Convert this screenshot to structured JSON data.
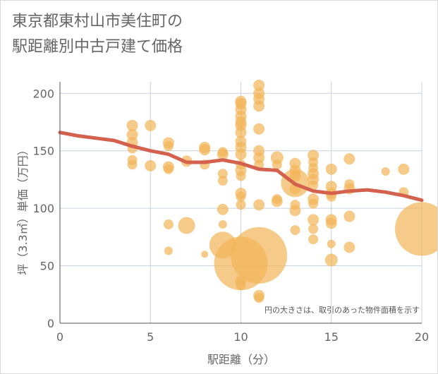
{
  "chart_data": {
    "type": "scatter",
    "title": [
      "東京都東村山市美住町の",
      "駅距離別中古戸建て価格"
    ],
    "xlabel": "駅距離（分）",
    "ylabel": "坪（3.3㎡）単価（万円）",
    "annotation": "円の大きさは、取引のあった物件面積を示す",
    "xlim": [
      0,
      20
    ],
    "ylim": [
      0,
      210
    ],
    "x_ticks": [
      0,
      5,
      10,
      15,
      20
    ],
    "y_ticks": [
      0,
      50,
      100,
      150,
      200
    ],
    "grid": true,
    "colors": {
      "bubble": "#f2b55a",
      "line": "#d4614e",
      "grid": "#c8d3dc",
      "text": "#666666"
    },
    "trend_line": {
      "x": [
        0,
        1,
        2,
        3,
        4,
        5,
        6,
        7,
        8,
        9,
        10,
        11,
        12,
        13,
        14,
        15,
        16,
        17,
        18,
        19,
        20
      ],
      "y": [
        166,
        163,
        161,
        159,
        154,
        150,
        147,
        140,
        140,
        142,
        139,
        134,
        133,
        121,
        115,
        113,
        115,
        116,
        114,
        111,
        107
      ]
    },
    "points": [
      {
        "x": 4,
        "y": 172,
        "size": 8
      },
      {
        "x": 4,
        "y": 164,
        "size": 8
      },
      {
        "x": 4,
        "y": 157,
        "size": 8
      },
      {
        "x": 4,
        "y": 152,
        "size": 7
      },
      {
        "x": 4,
        "y": 142,
        "size": 7
      },
      {
        "x": 4,
        "y": 138,
        "size": 7
      },
      {
        "x": 5,
        "y": 172,
        "size": 8
      },
      {
        "x": 5,
        "y": 137,
        "size": 8
      },
      {
        "x": 6,
        "y": 157,
        "size": 8
      },
      {
        "x": 6,
        "y": 154,
        "size": 7
      },
      {
        "x": 6,
        "y": 136,
        "size": 8
      },
      {
        "x": 6,
        "y": 134,
        "size": 7
      },
      {
        "x": 6,
        "y": 86,
        "size": 7
      },
      {
        "x": 6,
        "y": 63,
        "size": 6
      },
      {
        "x": 7,
        "y": 141,
        "size": 8
      },
      {
        "x": 7,
        "y": 85,
        "size": 12
      },
      {
        "x": 8,
        "y": 153,
        "size": 8
      },
      {
        "x": 8,
        "y": 151,
        "size": 8
      },
      {
        "x": 8,
        "y": 138,
        "size": 7
      },
      {
        "x": 8,
        "y": 60,
        "size": 5
      },
      {
        "x": 9,
        "y": 149,
        "size": 7
      },
      {
        "x": 9,
        "y": 147,
        "size": 8
      },
      {
        "x": 9,
        "y": 130,
        "size": 7
      },
      {
        "x": 9,
        "y": 124,
        "size": 7
      },
      {
        "x": 9,
        "y": 99,
        "size": 8
      },
      {
        "x": 9,
        "y": 86,
        "size": 6
      },
      {
        "x": 9,
        "y": 68,
        "size": 19
      },
      {
        "x": 10,
        "y": 193,
        "size": 8
      },
      {
        "x": 10,
        "y": 191,
        "size": 8
      },
      {
        "x": 10,
        "y": 186,
        "size": 8
      },
      {
        "x": 10,
        "y": 180,
        "size": 8
      },
      {
        "x": 10,
        "y": 175,
        "size": 8
      },
      {
        "x": 10,
        "y": 172,
        "size": 8
      },
      {
        "x": 10,
        "y": 166,
        "size": 8
      },
      {
        "x": 10,
        "y": 158,
        "size": 8
      },
      {
        "x": 10,
        "y": 153,
        "size": 8
      },
      {
        "x": 10,
        "y": 147,
        "size": 8
      },
      {
        "x": 10,
        "y": 138,
        "size": 7
      },
      {
        "x": 10,
        "y": 133,
        "size": 8
      },
      {
        "x": 10,
        "y": 128,
        "size": 7
      },
      {
        "x": 10,
        "y": 113,
        "size": 8
      },
      {
        "x": 10,
        "y": 110,
        "size": 7
      },
      {
        "x": 10,
        "y": 103,
        "size": 7
      },
      {
        "x": 10,
        "y": 52,
        "size": 38
      },
      {
        "x": 10,
        "y": 37,
        "size": 8
      },
      {
        "x": 10,
        "y": 33,
        "size": 7
      },
      {
        "x": 11,
        "y": 207,
        "size": 8
      },
      {
        "x": 11,
        "y": 200,
        "size": 8
      },
      {
        "x": 11,
        "y": 195,
        "size": 8
      },
      {
        "x": 11,
        "y": 189,
        "size": 8
      },
      {
        "x": 11,
        "y": 169,
        "size": 8
      },
      {
        "x": 11,
        "y": 150,
        "size": 8
      },
      {
        "x": 11,
        "y": 144,
        "size": 8
      },
      {
        "x": 11,
        "y": 138,
        "size": 7
      },
      {
        "x": 11,
        "y": 103,
        "size": 8
      },
      {
        "x": 11,
        "y": 59,
        "size": 40
      },
      {
        "x": 11,
        "y": 24,
        "size": 8
      },
      {
        "x": 11,
        "y": 22,
        "size": 7
      },
      {
        "x": 12,
        "y": 144,
        "size": 9
      },
      {
        "x": 12,
        "y": 138,
        "size": 7
      },
      {
        "x": 12,
        "y": 108,
        "size": 7
      },
      {
        "x": 12,
        "y": 106,
        "size": 8
      },
      {
        "x": 13,
        "y": 139,
        "size": 8
      },
      {
        "x": 13,
        "y": 133,
        "size": 8
      },
      {
        "x": 13,
        "y": 128,
        "size": 8
      },
      {
        "x": 13,
        "y": 122,
        "size": 20
      },
      {
        "x": 13,
        "y": 117,
        "size": 8
      },
      {
        "x": 13,
        "y": 103,
        "size": 7
      },
      {
        "x": 13,
        "y": 98,
        "size": 8
      },
      {
        "x": 13,
        "y": 81,
        "size": 7
      },
      {
        "x": 14,
        "y": 146,
        "size": 8
      },
      {
        "x": 14,
        "y": 140,
        "size": 7
      },
      {
        "x": 14,
        "y": 135,
        "size": 7
      },
      {
        "x": 14,
        "y": 130,
        "size": 8
      },
      {
        "x": 14,
        "y": 125,
        "size": 8
      },
      {
        "x": 14,
        "y": 120,
        "size": 7
      },
      {
        "x": 14,
        "y": 108,
        "size": 8
      },
      {
        "x": 14,
        "y": 104,
        "size": 7
      },
      {
        "x": 14,
        "y": 90,
        "size": 8
      },
      {
        "x": 14,
        "y": 82,
        "size": 7
      },
      {
        "x": 14,
        "y": 73,
        "size": 7
      },
      {
        "x": 15,
        "y": 134,
        "size": 8
      },
      {
        "x": 15,
        "y": 119,
        "size": 8
      },
      {
        "x": 15,
        "y": 113,
        "size": 8
      },
      {
        "x": 15,
        "y": 110,
        "size": 7
      },
      {
        "x": 15,
        "y": 90,
        "size": 8
      },
      {
        "x": 15,
        "y": 87,
        "size": 8
      },
      {
        "x": 15,
        "y": 69,
        "size": 6
      },
      {
        "x": 15,
        "y": 55,
        "size": 9
      },
      {
        "x": 16,
        "y": 143,
        "size": 8
      },
      {
        "x": 16,
        "y": 121,
        "size": 7
      },
      {
        "x": 16,
        "y": 117,
        "size": 8
      },
      {
        "x": 16,
        "y": 93,
        "size": 8
      },
      {
        "x": 16,
        "y": 66,
        "size": 8
      },
      {
        "x": 18,
        "y": 132,
        "size": 6
      },
      {
        "x": 19,
        "y": 134,
        "size": 8
      },
      {
        "x": 19,
        "y": 114,
        "size": 7
      },
      {
        "x": 20,
        "y": 82,
        "size": 38
      }
    ]
  }
}
